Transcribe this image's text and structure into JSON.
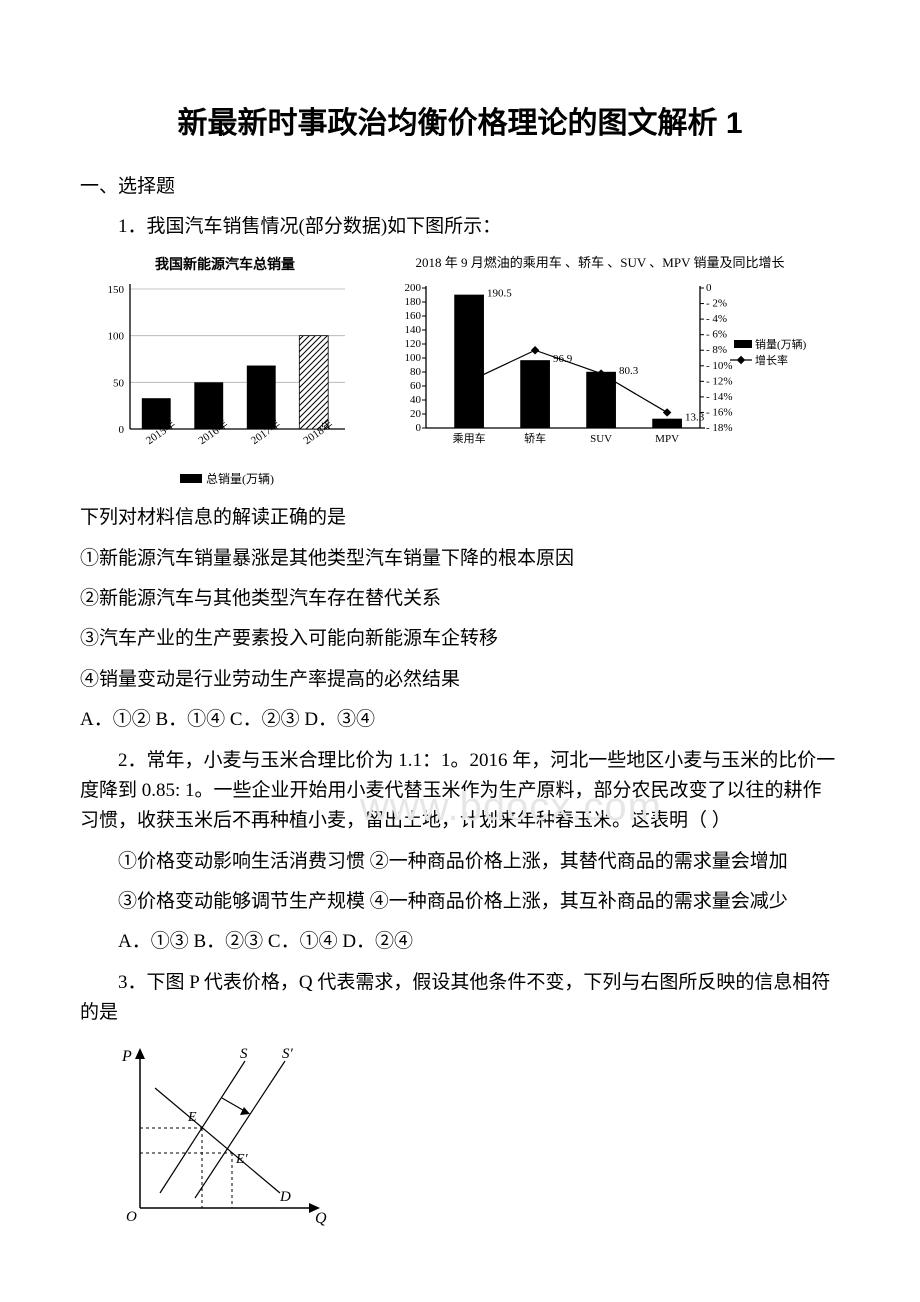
{
  "watermark": "www.bdocx.com",
  "title": "新最新时事政治均衡价格理论的图文解析 1",
  "section1": "一、选择题",
  "q1": {
    "stem": "1．我国汽车销售情况(部分数据)如下图所示：",
    "chart1": {
      "title": "我国新能源汽车总销量",
      "type": "bar",
      "categories": [
        "2015年",
        "2016年",
        "2017年",
        "2018年"
      ],
      "values": [
        33,
        50,
        68,
        100
      ],
      "ylim": [
        0,
        150
      ],
      "yticks": [
        0,
        50,
        100,
        150
      ],
      "bar_color": "#000000",
      "hatched": [
        false,
        false,
        false,
        true
      ],
      "legend": "总销量(万辆)",
      "axis_color": "#000000",
      "background_color": "#ffffff"
    },
    "chart2": {
      "title": "2018 年 9 月燃油的乘用车 、轿车 、SUV 、MPV 销量及同比增长",
      "type": "combo-bar-line",
      "categories": [
        "乘用车",
        "轿车",
        "SUV",
        "MPV"
      ],
      "bar_values": [
        190.5,
        96.9,
        80.3,
        13.3
      ],
      "bar_labels": [
        "190.5",
        "96.9",
        "80.3",
        "13.3"
      ],
      "bar_ylim": [
        0,
        200
      ],
      "bar_yticks": [
        0,
        20,
        40,
        60,
        80,
        100,
        120,
        140,
        160,
        180,
        200
      ],
      "line_values": [
        -12,
        -8,
        -11,
        -16
      ],
      "line_ylim": [
        -18,
        0
      ],
      "line_yticks": [
        0,
        2,
        4,
        6,
        8,
        10,
        12,
        14,
        16,
        18
      ],
      "line_ytick_labels": [
        "0",
        "2%",
        "4%",
        "6%",
        "8%",
        "10%",
        "12%",
        "14%",
        "16%",
        "18%"
      ],
      "legend_bar": "销量(万辆)",
      "legend_line": "增长率",
      "bar_color": "#000000",
      "line_color": "#000000"
    },
    "after": "下列对材料信息的解读正确的是",
    "opts": [
      "①新能源汽车销量暴涨是其他类型汽车销量下降的根本原因",
      "②新能源汽车与其他类型汽车存在替代关系",
      "③汽车产业的生产要素投入可能向新能源车企转移",
      "④销量变动是行业劳动生产率提高的必然结果"
    ],
    "choices": "A．①② B．①④ C．②③ D．③④"
  },
  "q2": {
    "stem": "2．常年，小麦与玉米合理比价为 1.1：1。2016 年，河北一些地区小麦与玉米的比价一度降到 0.85: 1。一些企业开始用小麦代替玉米作为生产原料，部分农民改变了以往的耕作习惯，收获玉米后不再种植小麦，留出土地，计划来年种春玉米。这表明（ ）",
    "opts": [
      "①价格变动影响生活消费习惯 ②一种商品价格上涨，其替代商品的需求量会增加",
      "③价格变动能够调节生产规模 ④一种商品价格上涨，其互补商品的需求量会减少"
    ],
    "choices": "A．①③ B．②③ C．①④ D．②④"
  },
  "q3": {
    "stem": "3．下图 P 代表价格，Q 代表需求，假设其他条件不变，下列与右图所反映的信息相符的是",
    "chart": {
      "type": "supply-demand-shift",
      "axis_labels": {
        "x": "Q",
        "y": "P",
        "origin": "O"
      },
      "line_labels": {
        "S": "S",
        "Sprime": "S′",
        "D": "D",
        "E": "E",
        "Eprime": "E′"
      },
      "axis_color": "#000000",
      "line_color": "#000000"
    }
  }
}
